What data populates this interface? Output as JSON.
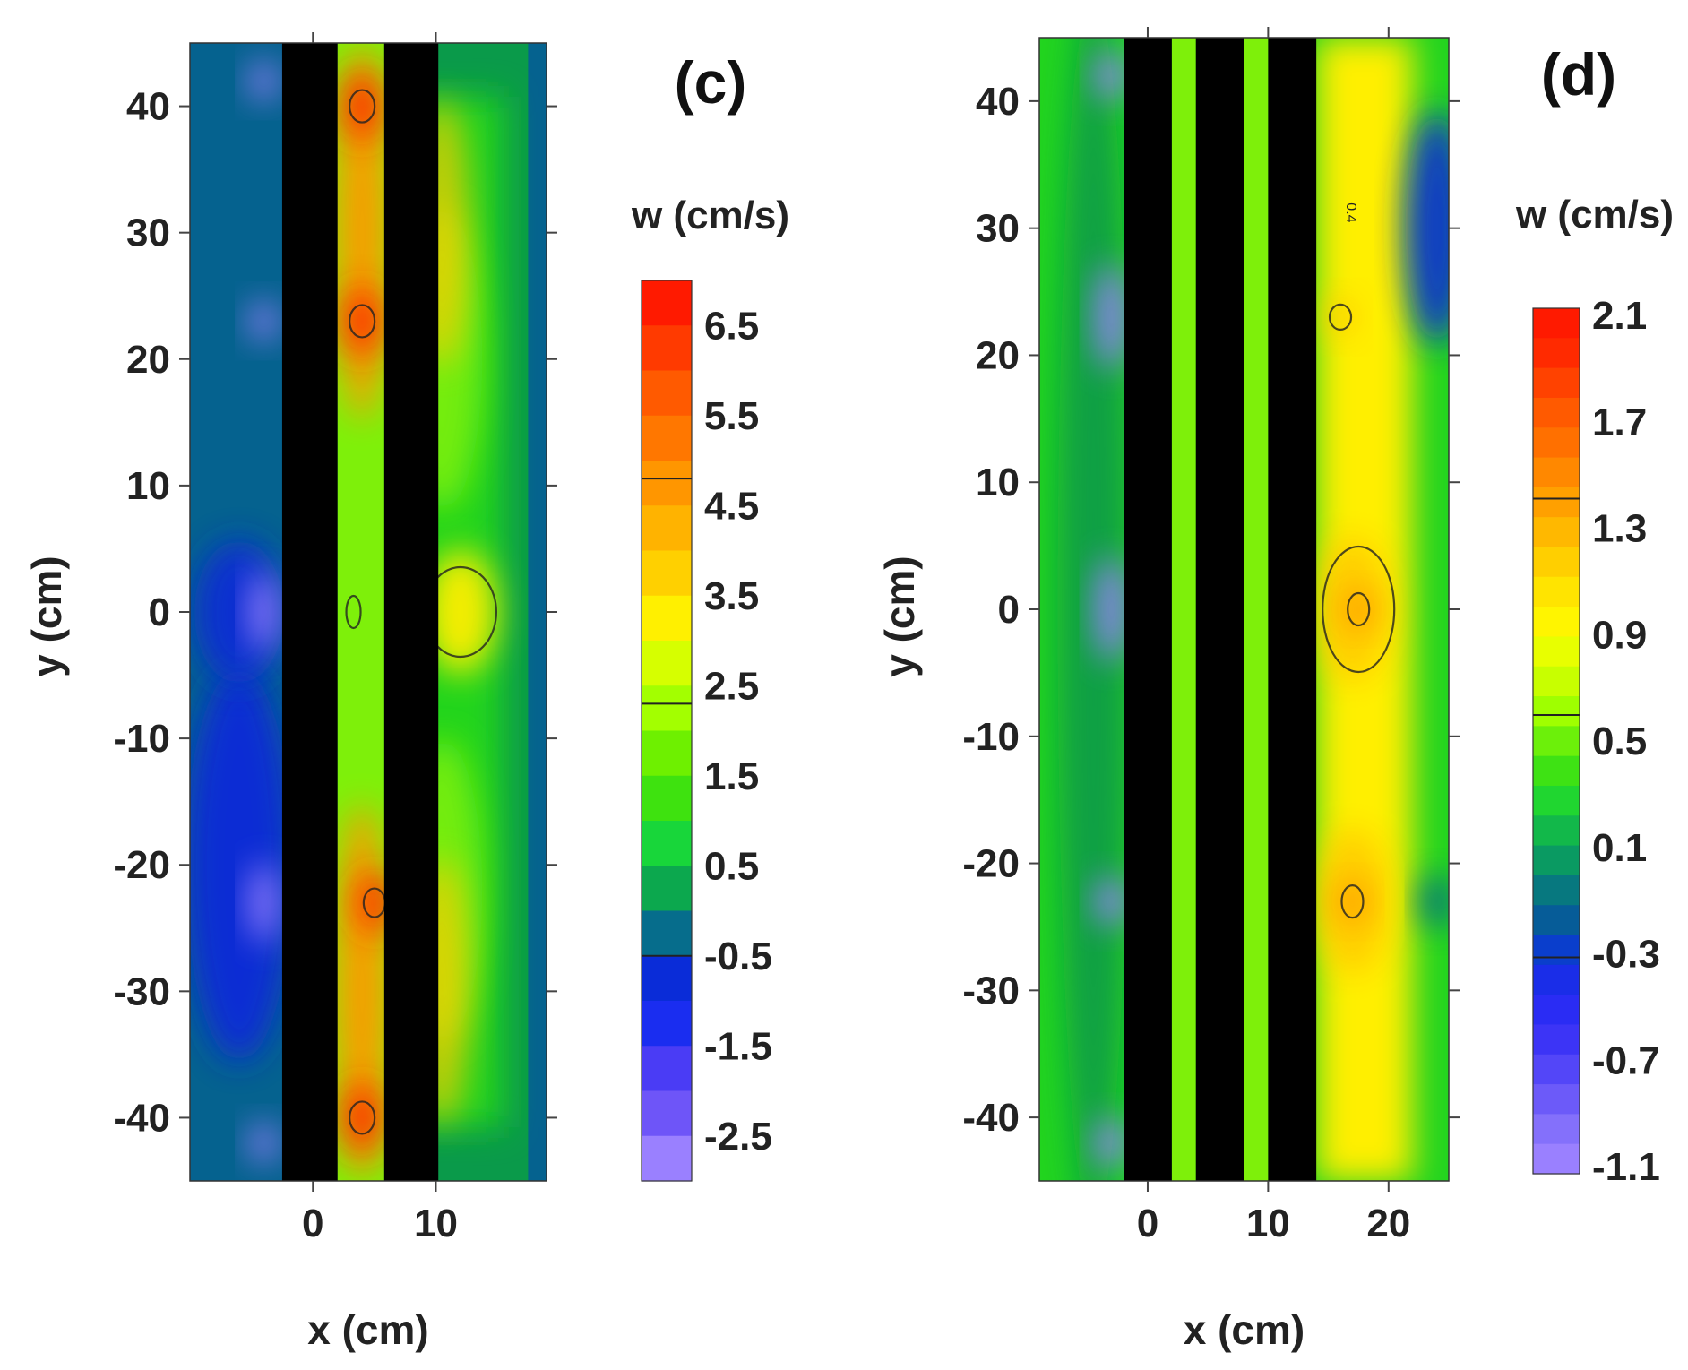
{
  "figure": {
    "description_labels": [
      "(c)",
      "(d)"
    ]
  },
  "colors": {
    "blue_dark": "#0a2cd8",
    "teal": "#05628f",
    "green_dark": "#0a9a4a",
    "green": "#22d41f",
    "lime": "#7ef00a",
    "yellow": "#ffef00",
    "gold": "#ffcb00",
    "orange": "#ff9a00",
    "red": "#ff2a00",
    "violet": "#9a80ff",
    "black": "#000000"
  },
  "chart_data": [
    {
      "type": "heatmap",
      "panel_label": "(c)",
      "title": "(c)",
      "xlabel": "x (cm)",
      "ylabel": "y (cm)",
      "xlim": [
        -10,
        19
      ],
      "ylim": [
        -45,
        45
      ],
      "x_ticks": [
        0,
        10
      ],
      "y_ticks": [
        40,
        30,
        20,
        10,
        0,
        -10,
        -20,
        -30,
        -40
      ],
      "x_tick_labels": [
        "0",
        "10"
      ],
      "y_tick_labels": [
        "40",
        "30",
        "20",
        "10",
        "0",
        "-10",
        "-20",
        "-30",
        "-40"
      ],
      "colorbar": {
        "title": "w (cm/s)",
        "labels": [
          "6.5",
          "5.5",
          "4.5",
          "3.5",
          "2.5",
          "1.5",
          "0.5",
          "-0.5",
          "-1.5",
          "-2.5"
        ],
        "colors": [
          "#ff1a00",
          "#ff3a00",
          "#ff5a00",
          "#ff7700",
          "#ff9600",
          "#ffb300",
          "#ffd000",
          "#fff000",
          "#d6ff00",
          "#a3ff00",
          "#6ef000",
          "#3ee20f",
          "#18d63a",
          "#0ca84e",
          "#066d8c",
          "#0a2cd8",
          "#1a2df0",
          "#4a3cf5",
          "#6e55f8",
          "#9a80ff"
        ]
      },
      "obstacles": [
        {
          "x_min": -2.5,
          "x_max": 2.0
        },
        {
          "x_min": 5.8,
          "x_max": 10.2
        }
      ],
      "field_notes": {
        "between_bars": "w about 3.5 to 5.5 with local maxima near y = 40, 23, -23, -40",
        "right_of_bars": "w about 1.5 to 3.5, peak near x = 12, y = 0",
        "left_of_bars": "w about -2.5 to 0.5, minima near x = -4, y = 42, 23, 0, -23, -42"
      }
    },
    {
      "type": "heatmap",
      "panel_label": "(d)",
      "title": "(d)",
      "xlabel": "x (cm)",
      "ylabel": "y (cm)",
      "xlim": [
        -9,
        25
      ],
      "ylim": [
        -45,
        45
      ],
      "x_ticks": [
        0,
        10,
        20
      ],
      "y_ticks": [
        40,
        30,
        20,
        10,
        0,
        -10,
        -20,
        -30,
        -40
      ],
      "x_tick_labels": [
        "0",
        "10",
        "20"
      ],
      "y_tick_labels": [
        "40",
        "30",
        "20",
        "10",
        "0",
        "-10",
        "-20",
        "-30",
        "-40"
      ],
      "colorbar": {
        "title": "w (cm/s)",
        "labels": [
          "2.1",
          "1.7",
          "1.3",
          "0.9",
          "0.5",
          "0.1",
          "-0.3",
          "-0.7",
          "-1.1"
        ],
        "colors": [
          "#ff1a00",
          "#ff2a00",
          "#ff4200",
          "#ff5a00",
          "#ff7000",
          "#ff8800",
          "#ffa000",
          "#ffb800",
          "#ffcf00",
          "#ffe400",
          "#fff500",
          "#e8ff00",
          "#c8ff00",
          "#9fff00",
          "#6cf00a",
          "#3ee214",
          "#20d630",
          "#12b84a",
          "#0a9a62",
          "#07787f",
          "#065c98",
          "#0a3ecc",
          "#1a2de8",
          "#2a2cf4",
          "#3c34f6",
          "#5346f8",
          "#6c5af9",
          "#8470fb",
          "#9a80ff"
        ]
      },
      "obstacles": [
        {
          "x_min": -2.0,
          "x_max": 2.0
        },
        {
          "x_min": 4.0,
          "x_max": 8.0
        },
        {
          "x_min": 10.0,
          "x_max": 14.0
        }
      ],
      "field_notes": {
        "right_of_bars": "w about 0.9 to 1.5, maxima near x = 17, y = 0 and y = -23",
        "left_of_bars": "w about -1.1 to 0.1, minima near x = -3, y = 42, 23, 0, -23, -42",
        "far_right": "w about -0.3 near x = 24, y = 42 and y = 23",
        "contour_label": "0.4"
      }
    }
  ]
}
